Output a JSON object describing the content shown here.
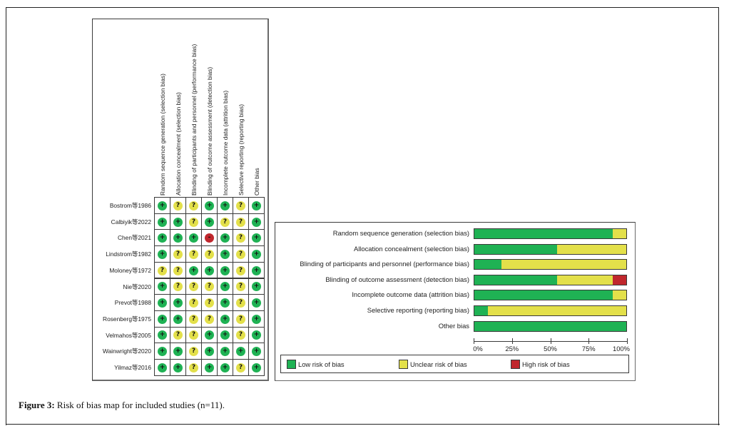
{
  "caption": {
    "label": "Figure 3:",
    "text": " Risk of bias map for included studies (n=11)."
  },
  "colors": {
    "low": "#1fb254",
    "unclear": "#e3e04a",
    "high": "#c0272d"
  },
  "symbols": {
    "low": "+",
    "unclear": "?",
    "high": "-"
  },
  "domains": [
    "Random sequence generation (selection bias)",
    "Allocation concealment (selection bias)",
    "Blinding of participants and personnel (performance bias)",
    "Blinding of outcome assessment (detection bias)",
    "Incomplete outcome data (attrition bias)",
    "Selective reporting (reporting bias)",
    "Other bias"
  ],
  "studies": [
    {
      "name": "Bostrom等1986",
      "ratings": [
        "low",
        "unclear",
        "unclear",
        "low",
        "low",
        "unclear",
        "low"
      ]
    },
    {
      "name": "Calbiyik等2022",
      "ratings": [
        "low",
        "low",
        "unclear",
        "low",
        "unclear",
        "unclear",
        "low"
      ]
    },
    {
      "name": "Chen等2021",
      "ratings": [
        "low",
        "low",
        "low",
        "high",
        "low",
        "unclear",
        "low"
      ]
    },
    {
      "name": "Lindstrom等1982",
      "ratings": [
        "low",
        "unclear",
        "unclear",
        "unclear",
        "low",
        "unclear",
        "low"
      ]
    },
    {
      "name": "Moloney等1972",
      "ratings": [
        "unclear",
        "unclear",
        "low",
        "low",
        "low",
        "unclear",
        "low"
      ]
    },
    {
      "name": "Nie等2020",
      "ratings": [
        "low",
        "unclear",
        "unclear",
        "unclear",
        "low",
        "unclear",
        "low"
      ]
    },
    {
      "name": "Prevot等1988",
      "ratings": [
        "low",
        "low",
        "unclear",
        "unclear",
        "low",
        "unclear",
        "low"
      ]
    },
    {
      "name": "Rosenberg等1975",
      "ratings": [
        "low",
        "low",
        "unclear",
        "unclear",
        "low",
        "unclear",
        "low"
      ]
    },
    {
      "name": "Velmahos等2005",
      "ratings": [
        "low",
        "unclear",
        "unclear",
        "low",
        "low",
        "unclear",
        "low"
      ]
    },
    {
      "name": "Wainwright等2020",
      "ratings": [
        "low",
        "low",
        "unclear",
        "low",
        "low",
        "low",
        "low"
      ]
    },
    {
      "name": "Yilmaz等2016",
      "ratings": [
        "low",
        "low",
        "unclear",
        "low",
        "low",
        "unclear",
        "low"
      ]
    }
  ],
  "chart_data": {
    "type": "bar",
    "orientation": "horizontal-stacked",
    "title": "",
    "xlabel": "",
    "ylabel": "",
    "xlim": [
      0,
      100
    ],
    "x_ticks": [
      "0%",
      "25%",
      "50%",
      "75%",
      "100%"
    ],
    "categories": [
      "Random sequence generation (selection bias)",
      "Allocation concealment (selection bias)",
      "Blinding of participants and personnel (performance bias)",
      "Blinding of outcome assessment (detection bias)",
      "Incomplete outcome data (attrition bias)",
      "Selective reporting (reporting bias)",
      "Other bias"
    ],
    "series": [
      {
        "name": "Low risk of bias",
        "key": "low",
        "values": [
          90.9,
          54.5,
          18.2,
          54.5,
          90.9,
          9.1,
          100
        ]
      },
      {
        "name": "Unclear risk of bias",
        "key": "unclear",
        "values": [
          9.1,
          45.5,
          81.8,
          36.4,
          9.1,
          90.9,
          0
        ]
      },
      {
        "name": "High risk of bias",
        "key": "high",
        "values": [
          0,
          0,
          0,
          9.1,
          0,
          0,
          0
        ]
      }
    ],
    "legend": {
      "placement": "bottom",
      "items": [
        "Low risk of bias",
        "Unclear risk of bias",
        "High risk of bias"
      ]
    },
    "grid": false
  }
}
